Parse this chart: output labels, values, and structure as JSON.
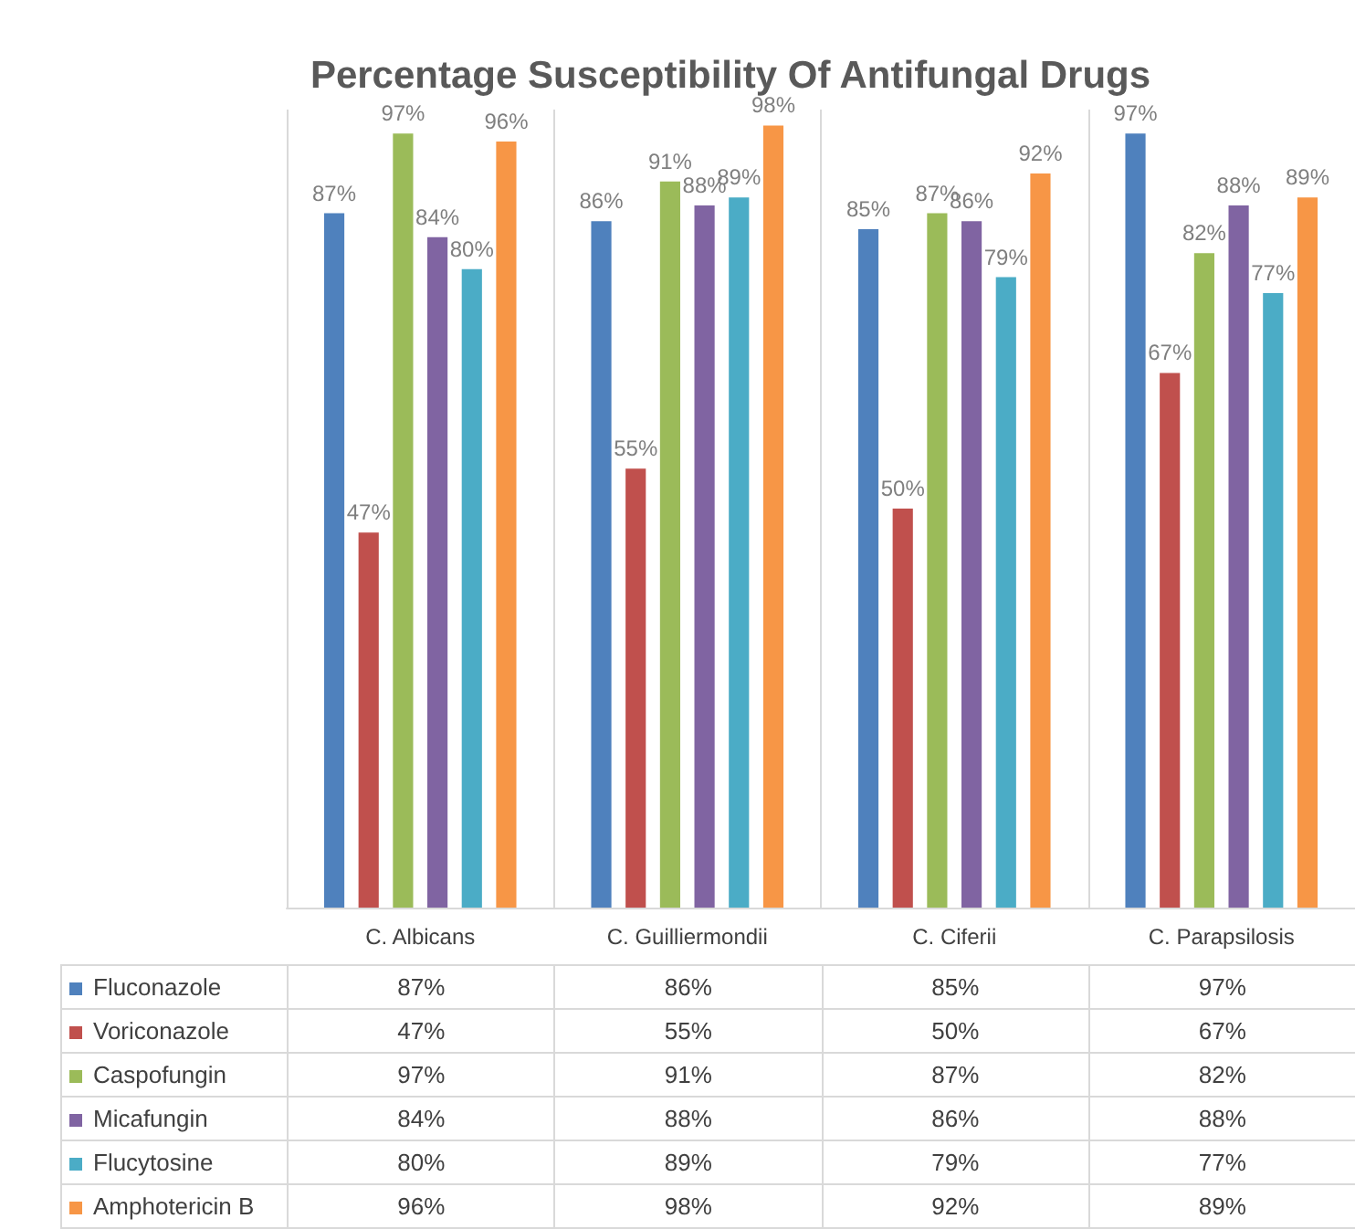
{
  "chart_data": {
    "type": "bar",
    "title": "Percentage Susceptibility Of Antifungal Drugs",
    "categories": [
      "C. Albicans",
      "C. Guilliermondii",
      "C. Ciferii",
      "C. Parapsilosis"
    ],
    "series": [
      {
        "name": "Fluconazole",
        "color": "#4f81bd",
        "values": [
          87,
          86,
          85,
          97
        ],
        "value_labels": [
          "87%",
          "86%",
          "85%",
          "97%"
        ]
      },
      {
        "name": "Voriconazole",
        "color": "#c0504d",
        "values": [
          47,
          55,
          50,
          67
        ],
        "value_labels": [
          "47%",
          "55%",
          "50%",
          "67%"
        ]
      },
      {
        "name": "Caspofungin",
        "color": "#9bbb59",
        "values": [
          97,
          91,
          87,
          82
        ],
        "value_labels": [
          "97%",
          "91%",
          "87%",
          "82%"
        ]
      },
      {
        "name": "Micafungin",
        "color": "#8064a2",
        "values": [
          84,
          88,
          86,
          88
        ],
        "value_labels": [
          "84%",
          "88%",
          "86%",
          "88%"
        ]
      },
      {
        "name": "Flucytosine",
        "color": "#4bacc6",
        "values": [
          80,
          89,
          79,
          77
        ],
        "value_labels": [
          "80%",
          "89%",
          "79%",
          "77%"
        ]
      },
      {
        "name": "Amphotericin B",
        "color": "#f79646",
        "values": [
          96,
          98,
          92,
          89
        ],
        "value_labels": [
          "96%",
          "98%",
          "92%",
          "89%"
        ]
      }
    ],
    "grid": "x",
    "legend": "bottom left"
  }
}
